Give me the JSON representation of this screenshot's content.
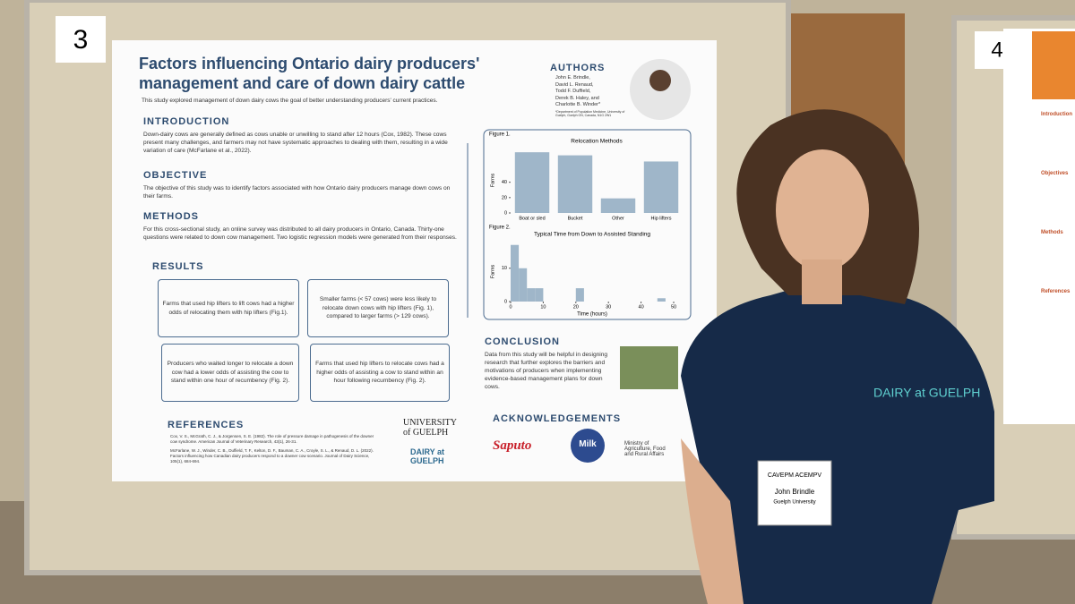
{
  "board_numbers": [
    "3",
    "4"
  ],
  "poster": {
    "title": "Factors influencing Ontario dairy producers' management and care of down dairy cattle",
    "subtitle": "This study explored management of down dairy cows the goal of better understanding producers' current practices.",
    "authors_heading": "AUTHORS",
    "authors": [
      "John E. Brindle,",
      "David L. Renaud,",
      "Todd F. Duffield,",
      "Derek B. Haley, and",
      "Charlotte B. Winder*"
    ],
    "affiliation": "*Department of Population Medicine, University of Guelph, Guelph ON, Canada, N1G 2W1",
    "sections": [
      {
        "heading": "INTRODUCTION",
        "text": "Down-dairy cows are generally defined as cows unable or unwilling to stand after 12 hours (Cox, 1982). These cows present many challenges, and farmers may not have systematic approaches to dealing with them, resulting in a wide variation of care (McFarlane et al., 2022)."
      },
      {
        "heading": "OBJECTIVE",
        "text": "The objective of this study was to identify factors associated with how Ontario dairy producers manage down cows on their farms."
      },
      {
        "heading": "METHODS",
        "text": "For this cross-sectional study, an online survey was distributed to all dairy producers in Ontario, Canada. Thirty-one questions were related to down cow management. Two logistic regression models were generated from their responses."
      }
    ],
    "results_heading": "RESULTS",
    "results": [
      "Farms that used hip lifters to lift cows had a higher odds of relocating them with hip lifters (Fig.1).",
      "Smaller farms (< 57 cows) were less likely to relocate down cows with hip lifters (Fig. 1), compared to larger farms (> 129 cows).",
      "Producers who waited longer to relocate a down cow had a lower odds of assisting the cow to stand within one hour of recumbency (Fig. 2).",
      "Farms that used hip lifters to relocate cows had a higher odds of assisting a cow to stand within an hour following recumbency (Fig. 2)."
    ],
    "conclusion_heading": "CONCLUSION",
    "conclusion": "Data from this study will be helpful in designing research that further explores the barriers and motivations of producers when implementing evidence-based management plans for down cows.",
    "references_heading": "REFERENCES",
    "references": [
      "Cox, V. S., McGrath, C. J., & Jorgensen, S. E. (1982). The role of pressure damage in pathogenesis of the downer cow syndrome. American Journal of Veterinary Research, 43(1), 26-31.",
      "McFarlane, W. J., Winder, C. B., Duffield, T. F., Kelton, D. F., Bauman, C. A., Croyle, S. L., & Renaud, D. L. (2022). Factors influencing how Canadian dairy producers respond to a downer cow scenario. Journal of Dairy Science, 105(1), 684-694."
    ],
    "acknowledgements_heading": "ACKNOWLEDGEMENTS",
    "logos": [
      "UNIVERSITY of GUELPH",
      "DAIRY at GUELPH",
      "Saputo",
      "Milk",
      "Ministry of Agriculture, Food and Rural Affairs"
    ]
  },
  "chart_data": [
    {
      "type": "bar",
      "label": "Figure 1.",
      "title": "Relocation Methods",
      "ylabel": "Farms",
      "categories": [
        "Boat or sled",
        "Bucket",
        "Other",
        "Hip lifters"
      ],
      "values": [
        79,
        75,
        19,
        67
      ],
      "color": "#9fb6c9",
      "ylim": [
        0,
        85
      ],
      "yticks": [
        0,
        20,
        40
      ]
    },
    {
      "type": "histogram",
      "label": "Figure 2.",
      "title": "Typical Time from Down to Assisted Standing",
      "ylabel": "Farms",
      "xlabel": "Time (hours)",
      "bins": [
        0,
        2.5,
        5,
        7.5,
        10,
        12.5,
        15,
        17.5,
        20,
        22.5,
        25,
        27.5,
        30,
        32.5,
        35,
        37.5,
        40,
        42.5,
        45,
        47.5,
        50
      ],
      "values": [
        17,
        10,
        4,
        4,
        0,
        0,
        0,
        0,
        4,
        0,
        0,
        0,
        0,
        0,
        0,
        0,
        0,
        0,
        1,
        0
      ],
      "color": "#9fb6c9",
      "xlim": [
        0,
        50
      ],
      "xticks": [
        0,
        10,
        20,
        30,
        40,
        50
      ],
      "ylim": [
        0,
        18
      ],
      "yticks": [
        0,
        10
      ]
    }
  ],
  "badge": {
    "org_header": "CAVEPM ACEMPV",
    "name": "John Brindle",
    "org": "Guelph University"
  },
  "shirt_logo": "DAIRY at GUELPH",
  "neighbor_poster": [
    "Introduction",
    "Objectives",
    "Methods",
    "References"
  ]
}
